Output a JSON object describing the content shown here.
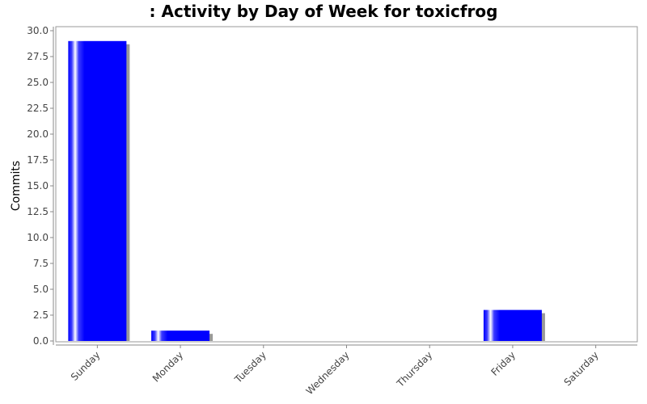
{
  "chart_data": {
    "type": "bar",
    "title": ": Activity by Day of Week for toxicfrog",
    "xlabel": "",
    "ylabel": "Commits",
    "categories": [
      "Sunday",
      "Monday",
      "Tuesday",
      "Wednesday",
      "Thursday",
      "Friday",
      "Saturday"
    ],
    "values": [
      29,
      1,
      0,
      0,
      0,
      3,
      0
    ],
    "ylim": [
      0,
      30
    ],
    "yticks": [
      "0.0",
      "2.5",
      "5.0",
      "7.5",
      "10.0",
      "12.5",
      "15.0",
      "17.5",
      "20.0",
      "22.5",
      "25.0",
      "27.5",
      "30.0"
    ],
    "bar_color": "#0000ff",
    "grid": false
  }
}
